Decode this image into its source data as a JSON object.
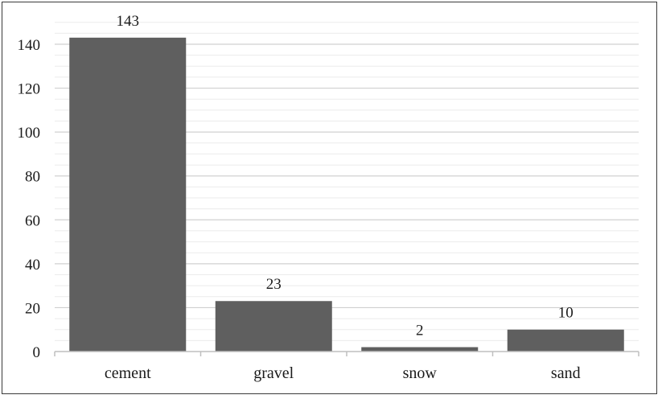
{
  "chart_data": {
    "type": "bar",
    "categories": [
      "cement",
      "gravel",
      "snow",
      "sand"
    ],
    "values": [
      143,
      23,
      2,
      10
    ],
    "title": "",
    "xlabel": "",
    "ylabel": "",
    "ylim": [
      0,
      150
    ],
    "yticks": [
      0,
      20,
      40,
      60,
      80,
      100,
      120,
      140
    ],
    "data_labels": [
      "143",
      "23",
      "2",
      "10"
    ],
    "grid": true,
    "legend": "none",
    "colors": {
      "bar": "#5f5f5f",
      "major_grid": "#d0d0d0",
      "minor_grid": "#ebebeb",
      "axis": "#bfbfbf",
      "text": "#1a1a1a"
    }
  }
}
